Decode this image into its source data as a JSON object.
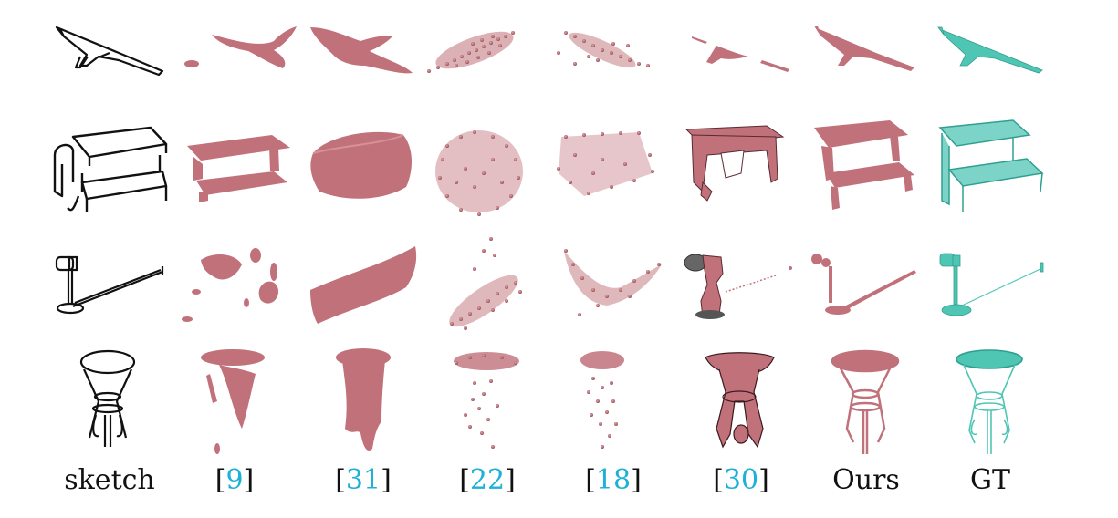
{
  "figure": {
    "columns": [
      {
        "id": "sketch",
        "label": "sketch",
        "is_ref": false
      },
      {
        "id": "m9",
        "label": "9",
        "is_ref": true
      },
      {
        "id": "m31",
        "label": "31",
        "is_ref": true
      },
      {
        "id": "m22",
        "label": "22",
        "is_ref": true
      },
      {
        "id": "m18",
        "label": "18",
        "is_ref": true
      },
      {
        "id": "m30",
        "label": "30",
        "is_ref": true
      },
      {
        "id": "ours",
        "label": "Ours",
        "is_ref": false
      },
      {
        "id": "gt",
        "label": "GT",
        "is_ref": false
      }
    ],
    "rows": [
      "airplane",
      "picnic-table",
      "desk-lamp",
      "round-side-table"
    ],
    "colors": {
      "sketch": "#111111",
      "recon": "#c0717a",
      "recon_dark": "#8e4a52",
      "gt": "#4fc6b4",
      "gt_dark": "#2f9f8f",
      "ref": "#1fb0d8"
    }
  }
}
